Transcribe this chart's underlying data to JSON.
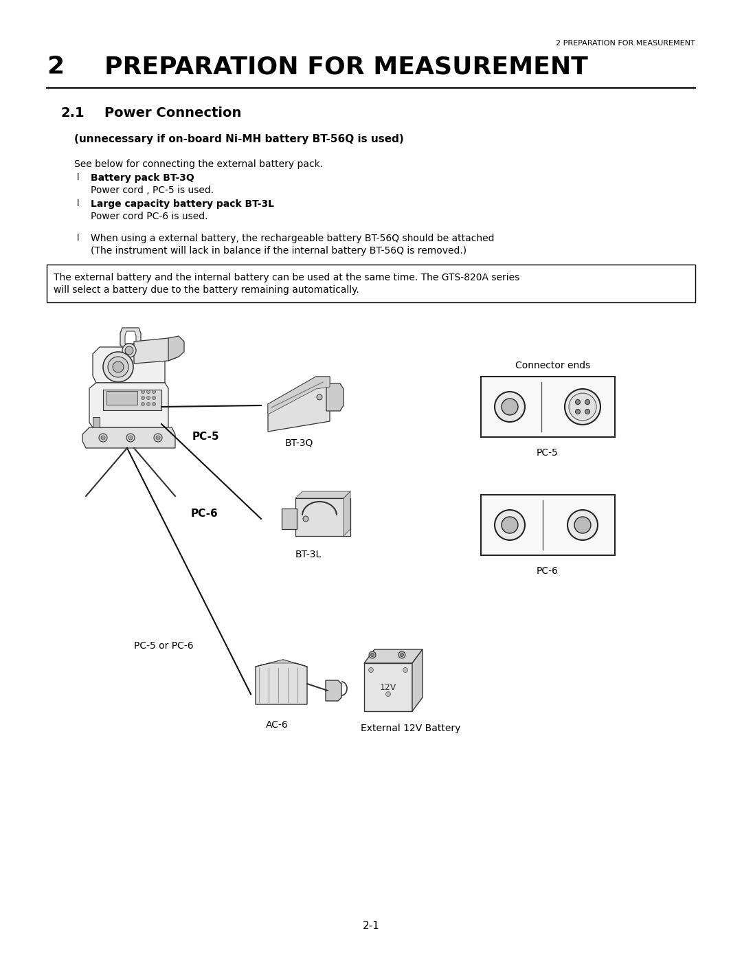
{
  "page_bg": "#ffffff",
  "header_text": "2 PREPARATION FOR MEASUREMENT",
  "chapter_num": "2",
  "chapter_title": "PREPARATION FOR MEASUREMENT",
  "section_num": "2.1",
  "section_title": "Power Connection",
  "subtitle": "(unnecessary if on-board Ni-MH battery BT-56Q is used)",
  "body_line": "See below for connecting the external battery pack.",
  "bullet1_bold": "Battery pack BT-3Q",
  "bullet1_text": "Power cord , PC-5 is used.",
  "bullet2_bold": "Large capacity battery pack BT-3L",
  "bullet2_text": "Power cord PC-6 is used.",
  "note_bullet": "When using a external battery, the rechargeable battery BT-56Q should be attached",
  "note_bullet2": "(The instrument will lack in balance if the internal battery BT-56Q is removed.)",
  "box_text1": "The external battery and the internal battery can be used at the same time. The GTS-820A series",
  "box_text2": "will select a battery due to the battery remaining automatically.",
  "page_num": "2-1",
  "label_pc5": "PC-5",
  "label_pc6": "PC-6",
  "label_bt3q": "BT-3Q",
  "label_bt3l": "BT-3L",
  "label_pc5_conn": "PC-5",
  "label_pc6_conn": "PC-6",
  "label_connector_ends": "Connector ends",
  "label_pc5_or_pc6": "PC-5 or PC-6",
  "label_ac6": "AC-6",
  "label_ext_battery": "External 12V Battery",
  "label_12v": "12V"
}
